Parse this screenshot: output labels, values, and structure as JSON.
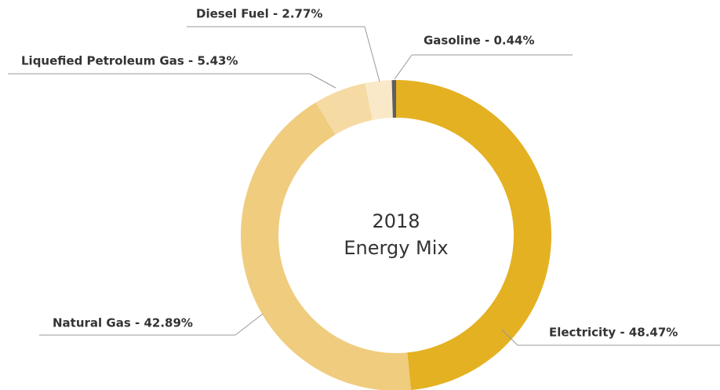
{
  "chart_data": {
    "type": "donut",
    "center_text": [
      "2018",
      "Energy Mix"
    ],
    "categories": [
      "Electricity - 48.47%",
      "Natural Gas - 42.89%",
      "Liquefied Petroleum Gas - 5.43%",
      "Diesel Fuel - 2.77%",
      "Gasoline - 0.44%"
    ],
    "values": [
      48.47,
      42.89,
      5.43,
      2.77,
      0.44
    ],
    "colors": [
      "#e4b122",
      "#f0cc7e",
      "#f5dba3",
      "#f9e9c9",
      "#5f5f5f"
    ]
  }
}
